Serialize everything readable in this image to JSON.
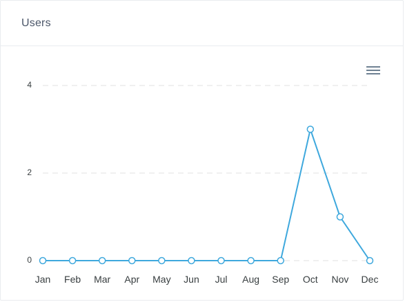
{
  "card": {
    "title": "Users"
  },
  "toolbar": {
    "menu_icon": "hamburger-menu-icon"
  },
  "colors": {
    "series": "#3ea8dd",
    "grid": "#e0e0e0",
    "marker_fill": "#ffffff"
  },
  "chart_data": {
    "type": "line",
    "title": "",
    "xlabel": "",
    "ylabel": "",
    "categories": [
      "Jan",
      "Feb",
      "Mar",
      "Apr",
      "May",
      "Jun",
      "Jul",
      "Aug",
      "Sep",
      "Oct",
      "Nov",
      "Dec"
    ],
    "series": [
      {
        "values": [
          0,
          0,
          0,
          0,
          0,
          0,
          0,
          0,
          0,
          3,
          1,
          0
        ]
      }
    ],
    "ylim": [
      0,
      4
    ],
    "yticks": [
      "0",
      "2",
      "4"
    ],
    "grid": "horizontal dashed",
    "markers": "hollow circles"
  }
}
